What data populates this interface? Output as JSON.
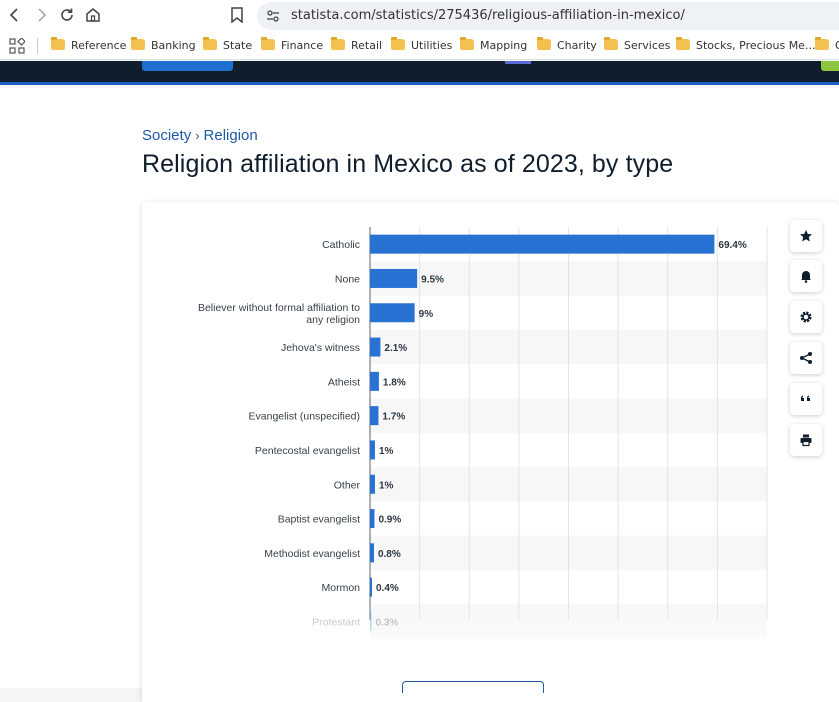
{
  "browser": {
    "url": "statista.com/statistics/275436/religious-affiliation-in-mexico/",
    "nav_icons": [
      "back-icon",
      "forward-icon",
      "reload-icon",
      "home-icon"
    ]
  },
  "bookmarks": [
    {
      "label": "Reference"
    },
    {
      "label": "Banking"
    },
    {
      "label": "State"
    },
    {
      "label": "Finance"
    },
    {
      "label": "Retail"
    },
    {
      "label": "Utilities"
    },
    {
      "label": "Mapping"
    },
    {
      "label": "Charity"
    },
    {
      "label": "Services"
    },
    {
      "label": "Stocks, Precious Me..."
    },
    {
      "label": "O"
    }
  ],
  "breadcrumb": {
    "items": [
      "Society",
      "Religion"
    ],
    "separator": "›"
  },
  "page": {
    "title": "Religion affiliation in Mexico as of 2023, by type"
  },
  "tools": [
    "star-icon",
    "bell-icon",
    "gear-icon",
    "share-icon",
    "quote-icon",
    "print-icon"
  ],
  "colors": {
    "bar": "#2872d4",
    "accent": "#1e5aa8",
    "header": "#0f1d2c",
    "green": "#8cc63f"
  },
  "chart_data": {
    "type": "bar",
    "orientation": "horizontal",
    "categories": [
      "Catholic",
      "None",
      "Believer without formal affiliation to any religion",
      "Jehova's witness",
      "Atheist",
      "Evangelist (unspecified)",
      "Pentecostal evangelist",
      "Other",
      "Baptist evangelist",
      "Methodist evangelist",
      "Mormon",
      "Protestant"
    ],
    "values": [
      69.4,
      9.5,
      9,
      2.1,
      1.8,
      1.7,
      1,
      1,
      0.9,
      0.8,
      0.4,
      0.3
    ],
    "value_labels": [
      "69.4%",
      "9.5%",
      "9%",
      "2.1%",
      "1.8%",
      "1.7%",
      "1%",
      "1%",
      "0.9%",
      "0.8%",
      "0.4%",
      "0.3%"
    ],
    "xlim": [
      0,
      80
    ],
    "grid": true
  }
}
